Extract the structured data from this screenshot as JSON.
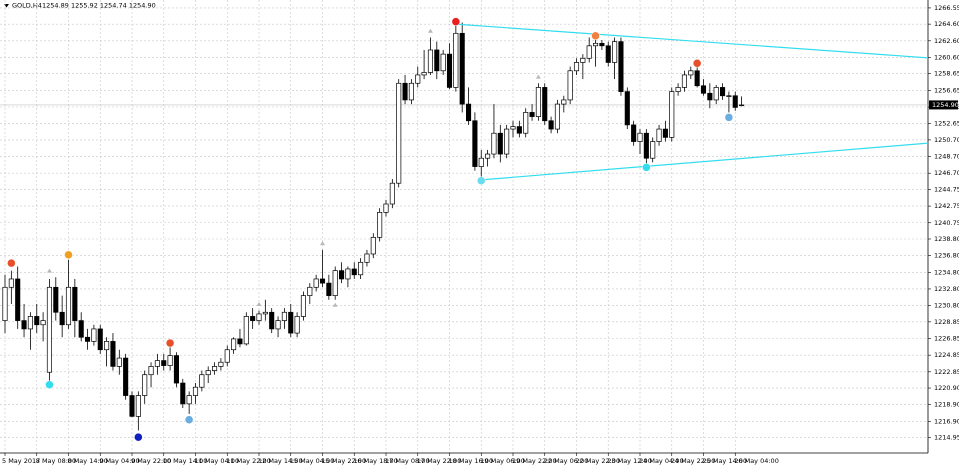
{
  "chart_data": {
    "type": "candlestick",
    "symbol": "GOLD,H4",
    "info": "1254.89 1255.92 1254.74 1254.90",
    "categories": [
      "5 May 2017",
      null,
      null,
      null,
      null,
      "8 May 08:00",
      null,
      null,
      null,
      null,
      "8 May 14:00",
      null,
      null,
      null,
      null,
      "9 May 04:00",
      null,
      null,
      null,
      null,
      "9 May 22:00",
      null,
      null,
      null,
      null,
      "10 May 14:00",
      null,
      null,
      null,
      null,
      "11 May 04:00",
      null,
      null,
      null,
      null,
      "11 May 22:00",
      null,
      null,
      null,
      null,
      "12 May 14:00",
      null,
      null,
      null,
      null,
      "15 May 04:00",
      null,
      null,
      null,
      null,
      "15 May 22:00",
      null,
      null,
      null,
      null,
      "16 May 18:00",
      null,
      null,
      null,
      null,
      "17 May 08:00",
      null,
      null,
      null,
      null,
      "17 May 22:00",
      null,
      null,
      null,
      null,
      "18 May 16:00",
      null,
      null,
      null,
      null,
      "19 May 06:00",
      null,
      null,
      null,
      null,
      "19 May 22:00",
      null,
      null,
      null,
      null,
      "22 May 06:00",
      null,
      null,
      null,
      null,
      "22 May 22:00",
      null,
      null,
      null,
      null,
      "23 May 12:00",
      null,
      null,
      null,
      null,
      "24 May 04:00",
      null,
      null,
      null,
      null,
      "24 May 22:00",
      null,
      null,
      null,
      null,
      "25 May 14:00",
      null,
      null,
      null,
      null,
      "26 May 04:00",
      null
    ],
    "open": [
      1229,
      1233,
      1234,
      1229,
      1228,
      1229.5,
      1228.5,
      1222.8,
      1233,
      1230,
      1228.5,
      1233,
      1229,
      1227,
      1226.5,
      1228,
      1225.5,
      1226.5,
      1223.5,
      1224.5,
      1220,
      1217.5,
      1220,
      1222.5,
      1223.5,
      1224.2,
      1223.6,
      1224.8,
      1221.5,
      1219,
      1220,
      1221,
      1222.5,
      1223,
      1223.5,
      1224,
      1225.5,
      1226.8,
      1226.2,
      1229.5,
      1229,
      1229.8,
      1230,
      1228,
      1229,
      1230,
      1227.5,
      1229.5,
      1232,
      1233,
      1234,
      1233.5,
      1232,
      1235,
      1234,
      1235.2,
      1234.5,
      1236,
      1237,
      1239,
      1242,
      1243,
      1245.5,
      1257.5,
      1255.5,
      1257.5,
      1258.5,
      1258.8,
      1261.5,
      1259,
      1261,
      1257,
      1263.5,
      1255,
      1253,
      1247.5,
      1248.5,
      1249,
      1251.5,
      1249,
      1252,
      1252.3,
      1251.5,
      1254,
      1253.5,
      1257,
      1253,
      1252,
      1255,
      1255.5,
      1259,
      1260,
      1260.5,
      1262,
      1262.3,
      1262,
      1260,
      1262.5,
      1256.5,
      1252.5,
      1250.5,
      1251.5,
      1248.5,
      1250.5,
      1252,
      1251,
      1256.5,
      1257,
      1258.5,
      1259,
      1257.2,
      1256.3,
      1255.5,
      1257,
      1256,
      1256,
      1254.89
    ],
    "high": [
      1234.5,
      1235,
      1235.5,
      1231,
      1230,
      1231,
      1230,
      1234,
      1234.2,
      1232,
      1236.3,
      1234,
      1230,
      1228,
      1228.5,
      1228.5,
      1227,
      1227.5,
      1225.5,
      1225,
      1220.5,
      1220.5,
      1223,
      1224,
      1225,
      1225,
      1225.8,
      1225.2,
      1222,
      1220.5,
      1221.5,
      1223,
      1223.5,
      1224,
      1224.5,
      1226,
      1227,
      1228,
      1230,
      1230.5,
      1230.2,
      1231.5,
      1230.5,
      1229.5,
      1230.5,
      1231,
      1230,
      1232.5,
      1233.5,
      1234.5,
      1237.5,
      1234.5,
      1235.5,
      1236,
      1235.5,
      1236,
      1236.5,
      1237.5,
      1239.5,
      1242.5,
      1243.5,
      1246,
      1258,
      1258.5,
      1258,
      1259.5,
      1261.5,
      1263,
      1262.5,
      1261.5,
      1262.3,
      1264.6,
      1264.8,
      1257,
      1254,
      1249.5,
      1249.5,
      1255,
      1252.5,
      1252.5,
      1253,
      1253,
      1254.5,
      1255,
      1257.5,
      1257.5,
      1253.5,
      1255.5,
      1256,
      1259.5,
      1260.5,
      1261,
      1263,
      1262.8,
      1262.7,
      1262.5,
      1263,
      1263,
      1257,
      1253,
      1252,
      1252,
      1251,
      1252.5,
      1253,
      1257,
      1257.5,
      1259,
      1259.5,
      1259.5,
      1258,
      1257.5,
      1257.3,
      1257.5,
      1256.5,
      1256.5,
      1255.92
    ],
    "low": [
      1227.5,
      1231,
      1228,
      1227,
      1225.5,
      1227.5,
      1226.5,
      1221.8,
      1229,
      1227,
      1228,
      1227,
      1226.5,
      1225.5,
      1226,
      1225,
      1223.5,
      1223,
      1222.5,
      1219.5,
      1217.4,
      1215.8,
      1219,
      1221,
      1222.5,
      1223,
      1223,
      1221,
      1218.5,
      1217.8,
      1219,
      1220.5,
      1221.5,
      1222.5,
      1223,
      1223.5,
      1225,
      1225.8,
      1226,
      1228,
      1228.5,
      1229,
      1227.5,
      1227,
      1228,
      1227,
      1227,
      1229,
      1231,
      1232.5,
      1233,
      1231.5,
      1231.5,
      1233.5,
      1233,
      1234,
      1234,
      1235.5,
      1236.5,
      1238.5,
      1241.5,
      1242.5,
      1245,
      1255,
      1255,
      1257,
      1258,
      1258.5,
      1258,
      1258.5,
      1256.8,
      1256.5,
      1254,
      1252.5,
      1247,
      1245.9,
      1247.5,
      1248.5,
      1248,
      1248.5,
      1251,
      1251,
      1251,
      1253,
      1253,
      1252.5,
      1251.5,
      1251.5,
      1254,
      1255,
      1258.5,
      1258,
      1260,
      1259.5,
      1261.5,
      1259.5,
      1258,
      1256,
      1252,
      1250,
      1249,
      1247.5,
      1248,
      1250,
      1250.5,
      1250.5,
      1256,
      1256.5,
      1258,
      1257,
      1256,
      1254.5,
      1255,
      1255.5,
      1254,
      1254.2,
      1254.74
    ],
    "close": [
      1233,
      1234,
      1229,
      1228,
      1229.5,
      1228.5,
      1229,
      1233,
      1230,
      1228.5,
      1233,
      1229,
      1227,
      1226.5,
      1228,
      1225.5,
      1226.5,
      1223.5,
      1224.5,
      1220,
      1217.5,
      1220,
      1222.5,
      1223.5,
      1224.2,
      1223.6,
      1224.8,
      1221.5,
      1219,
      1220,
      1221,
      1222.5,
      1223,
      1223.5,
      1224,
      1225.5,
      1226.8,
      1226.2,
      1229.5,
      1229,
      1229.8,
      1230,
      1228,
      1229,
      1230,
      1227.5,
      1229.5,
      1232,
      1233,
      1234,
      1233.5,
      1232,
      1235,
      1234,
      1235.2,
      1234.5,
      1236,
      1237,
      1239,
      1242,
      1243,
      1245.5,
      1257.5,
      1255.5,
      1257.5,
      1258.5,
      1258.8,
      1261.5,
      1259,
      1261,
      1257,
      1263.5,
      1255,
      1253,
      1247.5,
      1248.5,
      1249,
      1251.5,
      1249,
      1252,
      1252.3,
      1251.5,
      1254,
      1253.5,
      1257,
      1253,
      1252,
      1255,
      1255.5,
      1259,
      1260,
      1260.5,
      1262,
      1262.3,
      1262,
      1260,
      1262.5,
      1256.5,
      1252.5,
      1250.5,
      1251.5,
      1248.5,
      1250.5,
      1252,
      1251,
      1256.5,
      1257,
      1258.5,
      1259,
      1257.2,
      1256.3,
      1255.5,
      1257,
      1256,
      1256,
      1254.6,
      1254.9
    ],
    "last_price": {
      "value": 1254.9,
      "label": "1254.90"
    },
    "ylim": [
      1213.1,
      1267.5
    ],
    "yticks": [
      {
        "value": 1266.55,
        "label": "1266.55"
      },
      {
        "value": 1264.6,
        "label": "1264.60"
      },
      {
        "value": 1262.6,
        "label": "1262.60"
      },
      {
        "value": 1260.6,
        "label": "1260.60"
      },
      {
        "value": 1258.65,
        "label": "1258.65"
      },
      {
        "value": 1256.65,
        "label": "1256.65"
      },
      {
        "value": 1254.65,
        "label": "1254.65"
      },
      {
        "value": 1252.65,
        "label": "1252.65"
      },
      {
        "value": 1250.7,
        "label": "1250.70"
      },
      {
        "value": 1248.7,
        "label": "1248.70"
      },
      {
        "value": 1246.7,
        "label": "1246.70"
      },
      {
        "value": 1244.75,
        "label": "1244.75"
      },
      {
        "value": 1242.75,
        "label": "1242.75"
      },
      {
        "value": 1240.75,
        "label": "1240.75"
      },
      {
        "value": 1238.8,
        "label": "1238.80"
      },
      {
        "value": 1236.8,
        "label": "1236.80"
      },
      {
        "value": 1234.8,
        "label": "1234.80"
      },
      {
        "value": 1232.8,
        "label": "1232.80"
      },
      {
        "value": 1230.8,
        "label": "1230.80"
      },
      {
        "value": 1228.85,
        "label": "1228.85"
      },
      {
        "value": 1226.85,
        "label": "1226.85"
      },
      {
        "value": 1224.85,
        "label": "1224.85"
      },
      {
        "value": 1222.85,
        "label": "1222.85"
      },
      {
        "value": 1220.9,
        "label": "1220.90"
      },
      {
        "value": 1218.9,
        "label": "1218.90"
      },
      {
        "value": 1216.9,
        "label": "1216.90"
      },
      {
        "value": 1214.95,
        "label": "1214.95"
      }
    ],
    "grid": true,
    "trendlines": [
      {
        "color": "#33ddee",
        "from": [
          71,
          1264.6
        ],
        "to": [
          150,
          1260.3
        ]
      },
      {
        "color": "#33ddee",
        "from": [
          75,
          1245.9
        ],
        "to": [
          150,
          1250.6
        ]
      }
    ],
    "markers": [
      {
        "index": 1,
        "price": 1235.9,
        "color": "#e8502a"
      },
      {
        "index": 7,
        "price": 1221.3,
        "color": "#33ddee"
      },
      {
        "index": 10,
        "price": 1236.9,
        "color": "#f0a020"
      },
      {
        "index": 21,
        "price": 1215.0,
        "color": "#1020c0"
      },
      {
        "index": 26,
        "price": 1226.3,
        "color": "#e8502a"
      },
      {
        "index": 29,
        "price": 1217.1,
        "color": "#6aaee0"
      },
      {
        "index": 71,
        "price": 1264.9,
        "color": "#e82020"
      },
      {
        "index": 75,
        "price": 1245.8,
        "color": "#6adcf0"
      },
      {
        "index": 93,
        "price": 1263.2,
        "color": "#f08040"
      },
      {
        "index": 101,
        "price": 1247.4,
        "color": "#33ddee"
      },
      {
        "index": 109,
        "price": 1259.9,
        "color": "#e8502a"
      },
      {
        "index": 114,
        "price": 1253.4,
        "color": "#6aaee0"
      },
      {
        "index": 7,
        "price": 1235.0,
        "color": "#b8b8b8"
      },
      {
        "index": 40,
        "price": 1231.0,
        "color": "#b8b8b8"
      },
      {
        "index": 50,
        "price": 1238.3,
        "color": "#b8b8b8"
      },
      {
        "index": 52,
        "price": 1230.9,
        "color": "#b8b8b8"
      },
      {
        "index": 67,
        "price": 1263.8,
        "color": "#b8b8b8"
      },
      {
        "index": 84,
        "price": 1258.3,
        "color": "#b8b8b8"
      }
    ]
  }
}
